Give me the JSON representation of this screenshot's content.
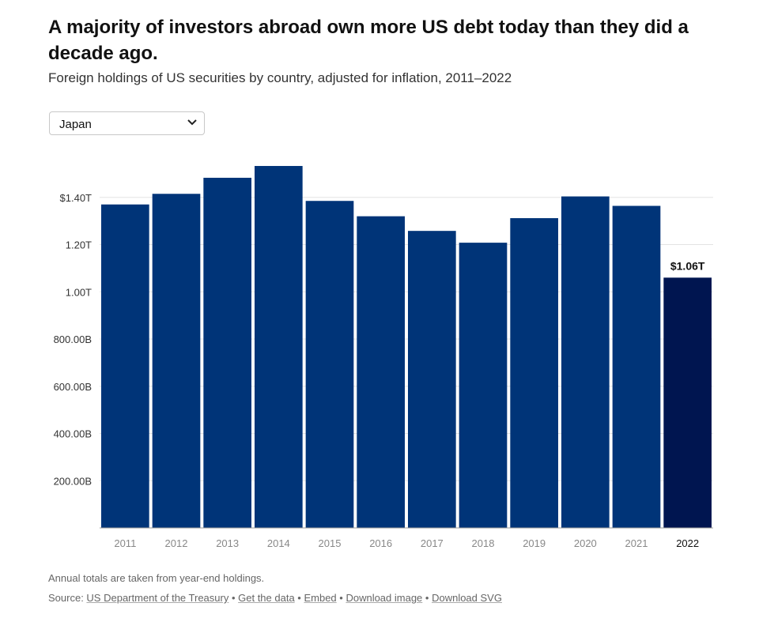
{
  "header": {
    "title": "A majority of investors abroad own more US debt today than they did a decade ago.",
    "subtitle": "Foreign holdings of US securities by country, adjusted for inflation, 2011–2022"
  },
  "country_select": {
    "selected": "Japan"
  },
  "chart_data": {
    "type": "bar",
    "categories": [
      "2011",
      "2012",
      "2013",
      "2014",
      "2015",
      "2016",
      "2017",
      "2018",
      "2019",
      "2020",
      "2021",
      "2022"
    ],
    "values": [
      1370000000000.0,
      1415000000000.0,
      1483000000000.0,
      1533000000000.0,
      1385000000000.0,
      1320000000000.0,
      1258000000000.0,
      1208000000000.0,
      1312000000000.0,
      1404000000000.0,
      1364000000000.0,
      1060000000000.0
    ],
    "yticks": [
      {
        "value": 200000000000.0,
        "label": "200.00B"
      },
      {
        "value": 400000000000.0,
        "label": "400.00B"
      },
      {
        "value": 600000000000.0,
        "label": "600.00B"
      },
      {
        "value": 800000000000.0,
        "label": "800.00B"
      },
      {
        "value": 1000000000000.0,
        "label": "1.00T"
      },
      {
        "value": 1200000000000.0,
        "label": "1.20T"
      },
      {
        "value": 1400000000000.0,
        "label": "$1.40T"
      }
    ],
    "ylim": [
      0,
      1600000000000.0
    ],
    "highlight_index": 11,
    "highlight_label": "$1.06T",
    "colors": {
      "bar": "#003478",
      "highlight": "#001550",
      "grid": "#e3e3e3",
      "axis": "#999999"
    }
  },
  "footer": {
    "note": "Annual totals are taken from year-end holdings.",
    "source_prefix": "Source: ",
    "source_link": "US Department of the Treasury",
    "sep": " • ",
    "get_data": "Get the data",
    "embed": "Embed",
    "download_image": "Download image",
    "download_svg": "Download SVG"
  }
}
